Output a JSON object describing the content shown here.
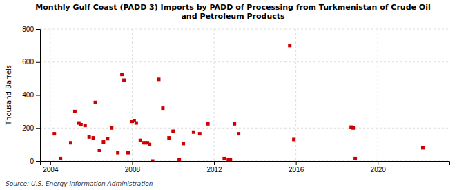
{
  "chart_data": {
    "type": "scatter",
    "title": "Monthly Gulf Coast (PADD 3) Imports by PADD of Processing from Turkmenistan of Crude Oil\nand Petroleum Products",
    "ylabel": "Thousand Barrels",
    "source": "Source: U.S. Energy Information Administration",
    "color": "#cc0000",
    "marker": "square",
    "grid": true,
    "xlim": [
      2003.5,
      2023.5
    ],
    "xticks": [
      2004,
      2008,
      2012,
      2016,
      2020
    ],
    "ylim": [
      0,
      800
    ],
    "yticks": [
      0,
      200,
      400,
      600,
      800
    ],
    "x": [
      2004.2,
      2004.5,
      2005.0,
      2005.2,
      2005.4,
      2005.5,
      2005.7,
      2005.9,
      2006.1,
      2006.2,
      2006.4,
      2006.6,
      2006.8,
      2007.0,
      2007.3,
      2007.5,
      2007.6,
      2007.8,
      2008.0,
      2008.1,
      2008.2,
      2008.4,
      2008.55,
      2008.65,
      2008.75,
      2008.85,
      2009.0,
      2009.3,
      2009.5,
      2009.8,
      2010.0,
      2010.3,
      2010.5,
      2011.0,
      2011.3,
      2011.7,
      2012.5,
      2012.7,
      2012.8,
      2013.0,
      2013.2,
      2015.7,
      2015.9,
      2018.7,
      2018.8,
      2018.9,
      2022.2
    ],
    "values": [
      165,
      15,
      110,
      300,
      230,
      220,
      215,
      145,
      140,
      355,
      65,
      115,
      135,
      200,
      50,
      525,
      490,
      50,
      240,
      245,
      230,
      125,
      110,
      110,
      110,
      100,
      0,
      495,
      320,
      140,
      180,
      10,
      105,
      175,
      165,
      225,
      15,
      10,
      10,
      225,
      165,
      700,
      130,
      205,
      200,
      15,
      80
    ]
  }
}
